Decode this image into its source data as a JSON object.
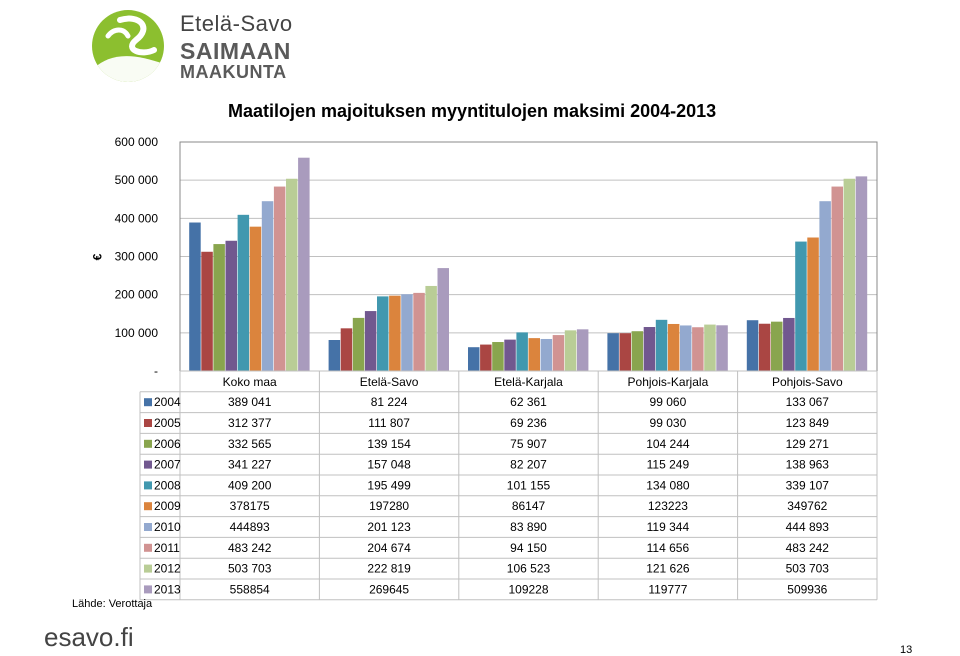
{
  "header": {
    "brand_line1": "Etelä-Savo",
    "brand_line2": "SAIMAAN",
    "brand_line3": "MAAKUNTA"
  },
  "footer": {
    "source": "Lähde: Verottaja",
    "brand": "esavo.fi",
    "page_number": "13"
  },
  "colors": {
    "logo_green": "#8cbf2f",
    "grid": "#c0c0c0"
  },
  "chart_data": {
    "type": "bar",
    "title": "Maatilojen majoituksen myyntitulojen maksimi 2004-2013",
    "ylabel": "€",
    "ylim": [
      0,
      600000
    ],
    "yticks": [
      "-",
      "100 000",
      "200 000",
      "300 000",
      "400 000",
      "500 000",
      "600 000"
    ],
    "grid": true,
    "legend": "data-table",
    "categories": [
      "Koko maa",
      "Etelä-Savo",
      "Etelä-Karjala",
      "Pohjois-Karjala",
      "Pohjois-Savo"
    ],
    "series": [
      {
        "name": "2004",
        "color": "#4572A7",
        "values": [
          389041,
          81224,
          62361,
          99060,
          133067
        ],
        "labels": [
          "389 041",
          "81 224",
          "62 361",
          "99 060",
          "133 067"
        ]
      },
      {
        "name": "2005",
        "color": "#AA4643",
        "values": [
          312377,
          111807,
          69236,
          99030,
          123849
        ],
        "labels": [
          "312 377",
          "111 807",
          "69 236",
          "99 030",
          "123 849"
        ]
      },
      {
        "name": "2006",
        "color": "#89A54E",
        "values": [
          332565,
          139154,
          75907,
          104244,
          129271
        ],
        "labels": [
          "332 565",
          "139 154",
          "75 907",
          "104 244",
          "129 271"
        ]
      },
      {
        "name": "2007",
        "color": "#71588F",
        "values": [
          341227,
          157048,
          82207,
          115249,
          138963
        ],
        "labels": [
          "341 227",
          "157 048",
          "82 207",
          "115 249",
          "138 963"
        ]
      },
      {
        "name": "2008",
        "color": "#4198AF",
        "values": [
          409200,
          195499,
          101155,
          134080,
          339107
        ],
        "labels": [
          "409 200",
          "195 499",
          "101 155",
          "134 080",
          "339 107"
        ]
      },
      {
        "name": "2009",
        "color": "#DB843D",
        "values": [
          378175,
          197280,
          86147,
          123223,
          349762
        ],
        "labels": [
          "378175",
          "197280",
          "86147",
          "123223",
          "349762"
        ]
      },
      {
        "name": "2010",
        "color": "#93A9CF",
        "values": [
          444893,
          201123,
          83890,
          119344,
          444893
        ],
        "labels": [
          "444893",
          "201 123",
          "83 890",
          "119 344",
          "444 893"
        ]
      },
      {
        "name": "2011",
        "color": "#D19392",
        "values": [
          483242,
          204674,
          94150,
          114656,
          483242
        ],
        "labels": [
          "483 242",
          "204 674",
          "94 150",
          "114 656",
          "483 242"
        ]
      },
      {
        "name": "2012",
        "color": "#B9CD96",
        "values": [
          503703,
          222819,
          106523,
          121626,
          503703
        ],
        "labels": [
          "503 703",
          "222 819",
          "106 523",
          "121 626",
          "503 703"
        ]
      },
      {
        "name": "2013",
        "color": "#A99BBD",
        "values": [
          558854,
          269645,
          109228,
          119777,
          509936
        ],
        "labels": [
          "558854",
          "269645",
          "109228",
          "119777",
          "509936"
        ]
      }
    ]
  }
}
